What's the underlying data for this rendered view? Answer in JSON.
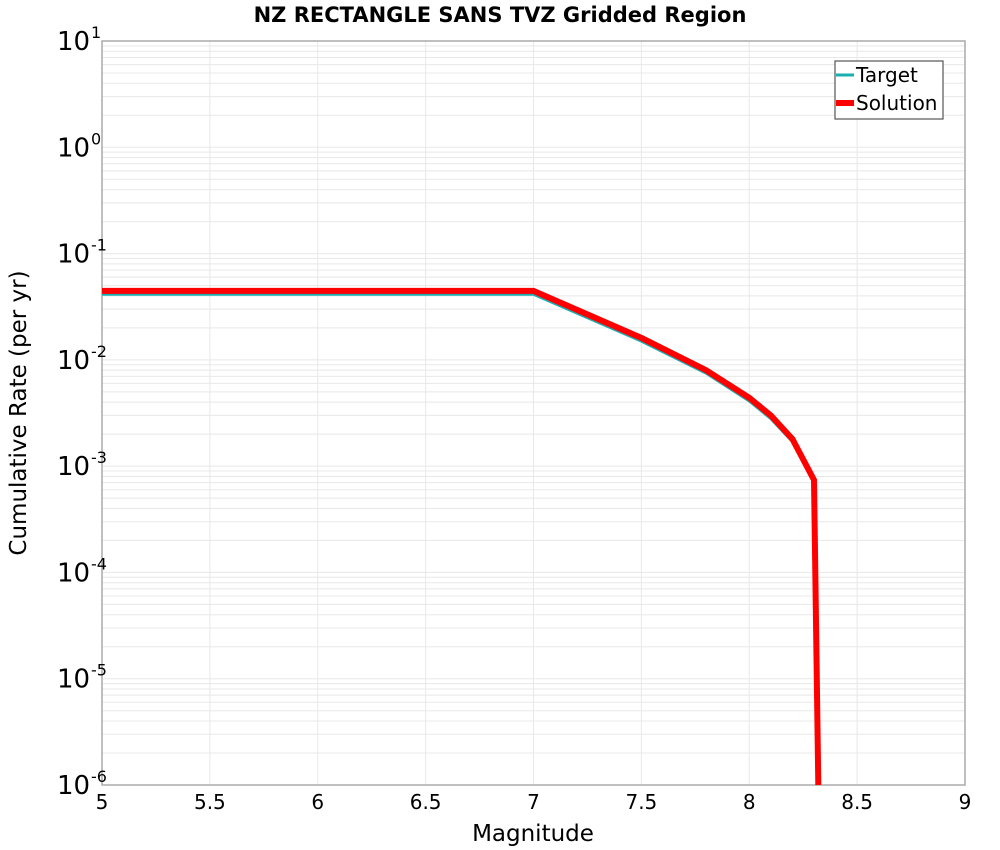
{
  "chart_data": {
    "type": "line",
    "title": "NZ RECTANGLE SANS TVZ Gridded Region",
    "xlabel": "Magnitude",
    "ylabel": "Cumulative Rate (per yr)",
    "xlim": [
      5,
      9
    ],
    "ylim": [
      1e-06,
      10
    ],
    "yscale": "log",
    "grid": true,
    "legend_position": "upper right",
    "x_ticks": [
      "5",
      "5.5",
      "6",
      "6.5",
      "7",
      "7.5",
      "8",
      "8.5",
      "9"
    ],
    "y_ticks": [
      {
        "base": "10",
        "exp": "1"
      },
      {
        "base": "10",
        "exp": "0"
      },
      {
        "base": "10",
        "exp": "-1"
      },
      {
        "base": "10",
        "exp": "-2"
      },
      {
        "base": "10",
        "exp": "-3"
      },
      {
        "base": "10",
        "exp": "-4"
      },
      {
        "base": "10",
        "exp": "-5"
      },
      {
        "base": "10",
        "exp": "-6"
      }
    ],
    "series": [
      {
        "name": "Target",
        "color": "#1aafaf",
        "line_width": 3,
        "x": [
          5.0,
          7.0,
          7.5,
          7.8,
          8.0,
          8.1,
          8.2,
          8.3,
          8.32
        ],
        "y": [
          0.0415,
          0.0415,
          0.015,
          0.0075,
          0.0041,
          0.0028,
          0.0017,
          0.00072,
          1e-06
        ]
      },
      {
        "name": "Solution",
        "color": "#ff0000",
        "line_width": 6,
        "x": [
          5.0,
          7.0,
          7.5,
          7.8,
          8.0,
          8.1,
          8.2,
          8.3,
          8.32
        ],
        "y": [
          0.0445,
          0.0445,
          0.0161,
          0.008,
          0.0044,
          0.003,
          0.0018,
          0.00074,
          1e-06
        ]
      }
    ]
  },
  "legend": {
    "items": [
      {
        "label": "Target",
        "color": "#1aafaf"
      },
      {
        "label": "Solution",
        "color": "#ff0000"
      }
    ]
  }
}
